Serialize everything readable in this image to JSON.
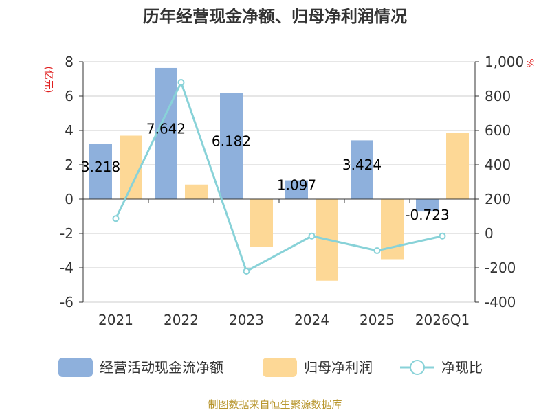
{
  "chart_data": {
    "type": "bar",
    "title": "历年经营现金净额、归母净利润情况",
    "categories": [
      "2021",
      "2022",
      "2023",
      "2024",
      "2025",
      "2026Q1"
    ],
    "series": [
      {
        "name": "经营活动现金流净额",
        "type": "bar",
        "axis": "left",
        "color": "#8eb0dc",
        "values": [
          3.218,
          7.642,
          6.182,
          1.097,
          3.424,
          -0.723
        ],
        "labels": [
          "3.218",
          "7.642",
          "6.182",
          "1.097",
          "3.424",
          "-0.723"
        ]
      },
      {
        "name": "归母净利润",
        "type": "bar",
        "axis": "left",
        "color": "#fdd896",
        "values": [
          3.7,
          0.85,
          -2.8,
          -4.75,
          -3.5,
          3.85
        ]
      },
      {
        "name": "净现比",
        "type": "line",
        "axis": "right",
        "color": "#88d2d8",
        "values": [
          87,
          880,
          -220,
          -15,
          -100,
          -15
        ]
      }
    ],
    "y_left": {
      "unit": "(亿元)",
      "ylim": [
        -6,
        8
      ],
      "ticks": [
        "8",
        "6",
        "4",
        "2",
        "0",
        "-2",
        "-4",
        "-6"
      ]
    },
    "y_right": {
      "unit": "%",
      "ylim": [
        -400,
        1000
      ],
      "ticks": [
        "1,000",
        "800",
        "600",
        "400",
        "200",
        "0",
        "-200",
        "-400"
      ]
    },
    "grid": true,
    "legend_position": "bottom"
  },
  "source": "制图数据来自恒生聚源数据库"
}
